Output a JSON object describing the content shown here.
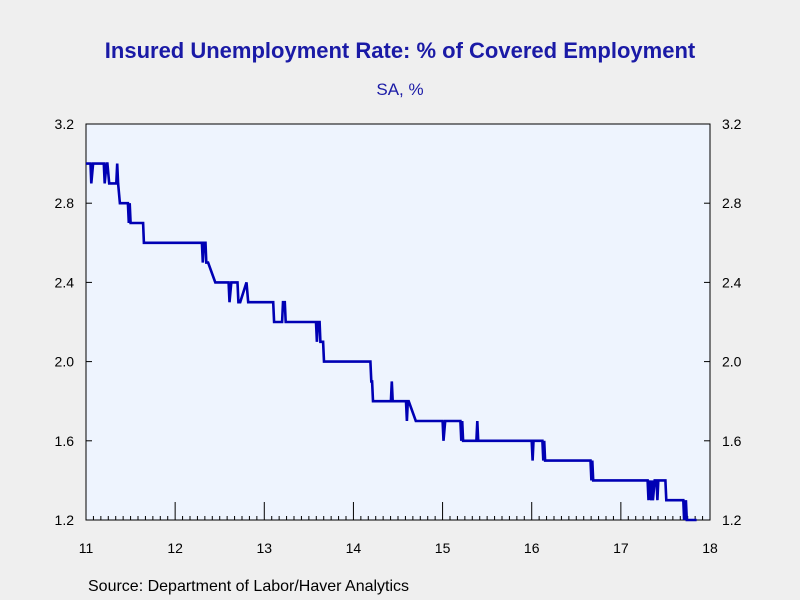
{
  "chart_data": {
    "type": "line",
    "title": "Insured Unemployment Rate: %  of Covered Employment",
    "subtitle": "SA, %",
    "source": "Source:  Department of Labor/Haver Analytics",
    "xlabel": "",
    "ylabel": "",
    "xlim": [
      2011.0,
      2018.0
    ],
    "ylim": [
      1.2,
      3.2
    ],
    "x_ticks": [
      "11",
      "12",
      "13",
      "14",
      "15",
      "16",
      "17",
      "18"
    ],
    "y_ticks": [
      "1.2",
      "1.6",
      "2.0",
      "2.4",
      "2.8",
      "3.2"
    ],
    "grid": false,
    "line_color": "#0000b4",
    "plot_background": "#eef4fe",
    "series": [
      {
        "frequency": "weekly",
        "x": [
          2011.0,
          2011.05,
          2011.06,
          2011.08,
          2011.2,
          2011.21,
          2011.23,
          2011.24,
          2011.26,
          2011.27,
          2011.29,
          2011.34,
          2011.35,
          2011.36,
          2011.38,
          2011.47,
          2011.48,
          2011.49,
          2011.5,
          2011.52,
          2011.64,
          2011.65,
          2012.3,
          2012.31,
          2012.32,
          2012.34,
          2012.35,
          2012.37,
          2012.45,
          2012.6,
          2012.61,
          2012.63,
          2012.7,
          2012.71,
          2012.73,
          2012.8,
          2012.82,
          2012.83,
          2013.0,
          2013.1,
          2013.11,
          2013.13,
          2013.2,
          2013.21,
          2013.23,
          2013.24,
          2013.58,
          2013.59,
          2013.6,
          2013.62,
          2013.63,
          2013.64,
          2013.66,
          2013.67,
          2013.68,
          2013.72,
          2013.85,
          2014.19,
          2014.2,
          2014.21,
          2014.22,
          2014.42,
          2014.43,
          2014.44,
          2014.59,
          2014.6,
          2014.61,
          2014.62,
          2014.7,
          2014.99,
          2015.0,
          2015.01,
          2015.03,
          2015.2,
          2015.21,
          2015.22,
          2015.23,
          2015.38,
          2015.39,
          2015.4,
          2015.42,
          2016.0,
          2016.01,
          2016.02,
          2016.03,
          2016.12,
          2016.13,
          2016.14,
          2016.15,
          2016.18,
          2016.66,
          2016.67,
          2016.68,
          2016.69,
          2016.7,
          2016.71,
          2017.3,
          2017.31,
          2017.32,
          2017.34,
          2017.35,
          2017.36,
          2017.38,
          2017.4,
          2017.41,
          2017.42,
          2017.5,
          2017.51,
          2017.52,
          2017.54,
          2017.7,
          2017.71,
          2017.73,
          2017.74,
          2017.75,
          2017.77,
          2017.78,
          2017.85
        ],
        "values": [
          3.0,
          3.0,
          2.9,
          3.0,
          3.0,
          2.9,
          3.0,
          3.0,
          2.9,
          2.9,
          2.9,
          2.9,
          3.0,
          2.9,
          2.8,
          2.8,
          2.7,
          2.8,
          2.7,
          2.7,
          2.7,
          2.6,
          2.6,
          2.5,
          2.6,
          2.6,
          2.5,
          2.5,
          2.4,
          2.4,
          2.3,
          2.4,
          2.4,
          2.3,
          2.3,
          2.4,
          2.3,
          2.3,
          2.3,
          2.3,
          2.2,
          2.2,
          2.2,
          2.3,
          2.3,
          2.2,
          2.2,
          2.1,
          2.2,
          2.2,
          2.1,
          2.1,
          2.1,
          2.0,
          2.0,
          2.0,
          2.0,
          2.0,
          1.9,
          1.9,
          1.8,
          1.8,
          1.9,
          1.8,
          1.8,
          1.7,
          1.8,
          1.8,
          1.7,
          1.7,
          1.7,
          1.6,
          1.7,
          1.7,
          1.6,
          1.7,
          1.6,
          1.6,
          1.7,
          1.6,
          1.6,
          1.6,
          1.5,
          1.6,
          1.6,
          1.6,
          1.5,
          1.6,
          1.5,
          1.5,
          1.5,
          1.4,
          1.5,
          1.4,
          1.4,
          1.4,
          1.4,
          1.3,
          1.4,
          1.3,
          1.4,
          1.3,
          1.4,
          1.4,
          1.3,
          1.4,
          1.4,
          1.3,
          1.3,
          1.3,
          1.3,
          1.2,
          1.3,
          1.2,
          1.2,
          1.2,
          1.2,
          1.2
        ]
      }
    ]
  }
}
